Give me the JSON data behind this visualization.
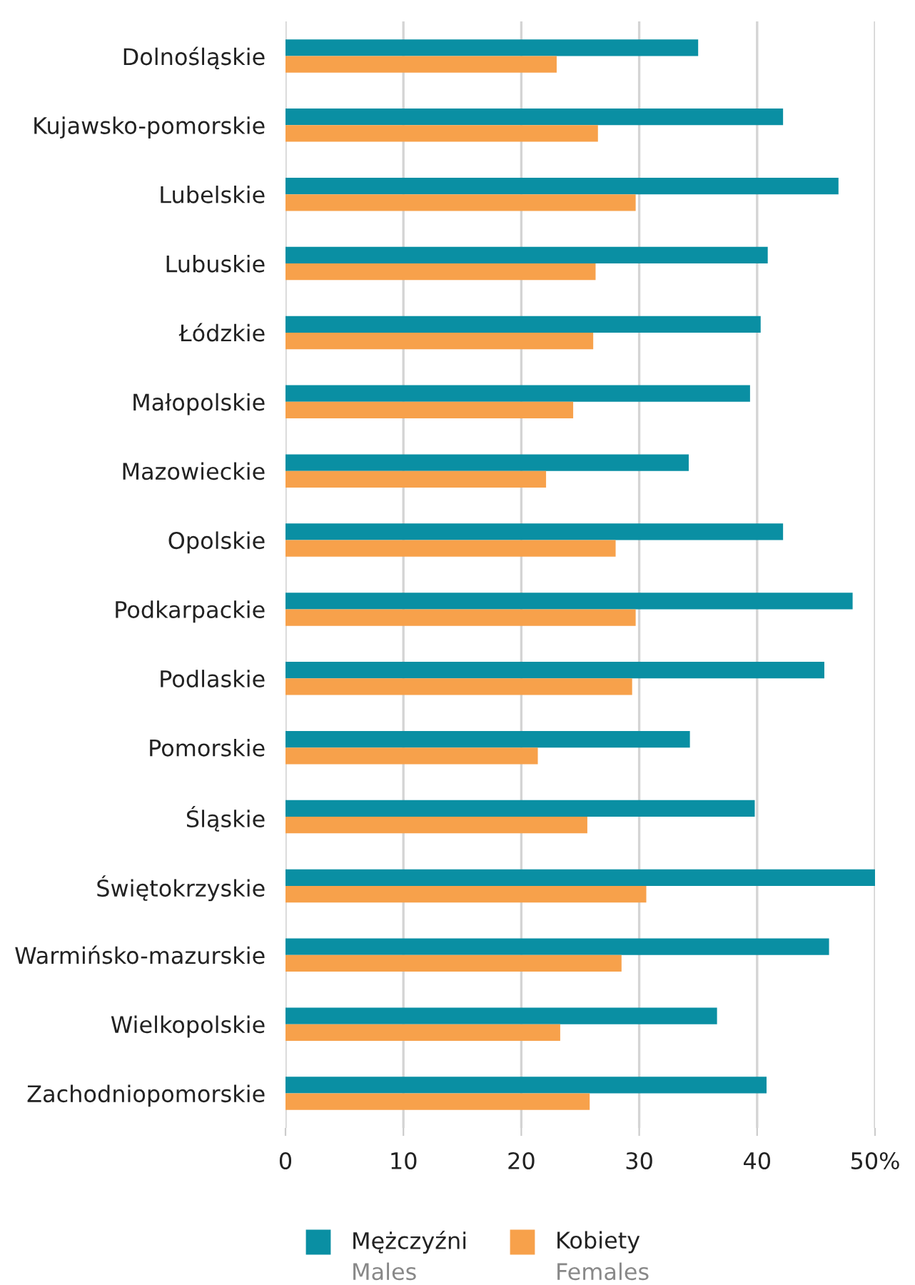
{
  "chart_data": {
    "type": "bar",
    "orientation": "horizontal",
    "categories": [
      "Dolnośląskie",
      "Kujawsko-pomorskie",
      "Lubelskie",
      "Lubuskie",
      "Łódzkie",
      "Małopolskie",
      "Mazowieckie",
      "Opolskie",
      "Podkarpackie",
      "Podlaskie",
      "Pomorskie",
      "Śląskie",
      "Świętokrzyskie",
      "Warmińsko-mazurskie",
      "Wielkopolskie",
      "Zachodniopomorskie"
    ],
    "series": [
      {
        "name": "Mężczyźni\nMales",
        "color": "#0a8fa3",
        "values": [
          35.0,
          42.2,
          46.9,
          40.9,
          40.3,
          39.4,
          34.2,
          42.2,
          48.1,
          45.7,
          34.3,
          39.8,
          50.0,
          46.1,
          36.6,
          40.8
        ]
      },
      {
        "name": "Kobiety\nFemales",
        "color": "#f7a14b",
        "values": [
          23.0,
          26.5,
          29.7,
          26.3,
          26.1,
          24.4,
          22.1,
          28.0,
          29.7,
          29.4,
          21.4,
          25.6,
          30.6,
          28.5,
          23.3,
          25.8
        ]
      }
    ],
    "xlim": [
      0,
      50
    ],
    "xticks": [
      0,
      10,
      20,
      30,
      40,
      {
        "value": 50,
        "label": "50%"
      }
    ],
    "grid": "x",
    "legend": "bottom"
  }
}
